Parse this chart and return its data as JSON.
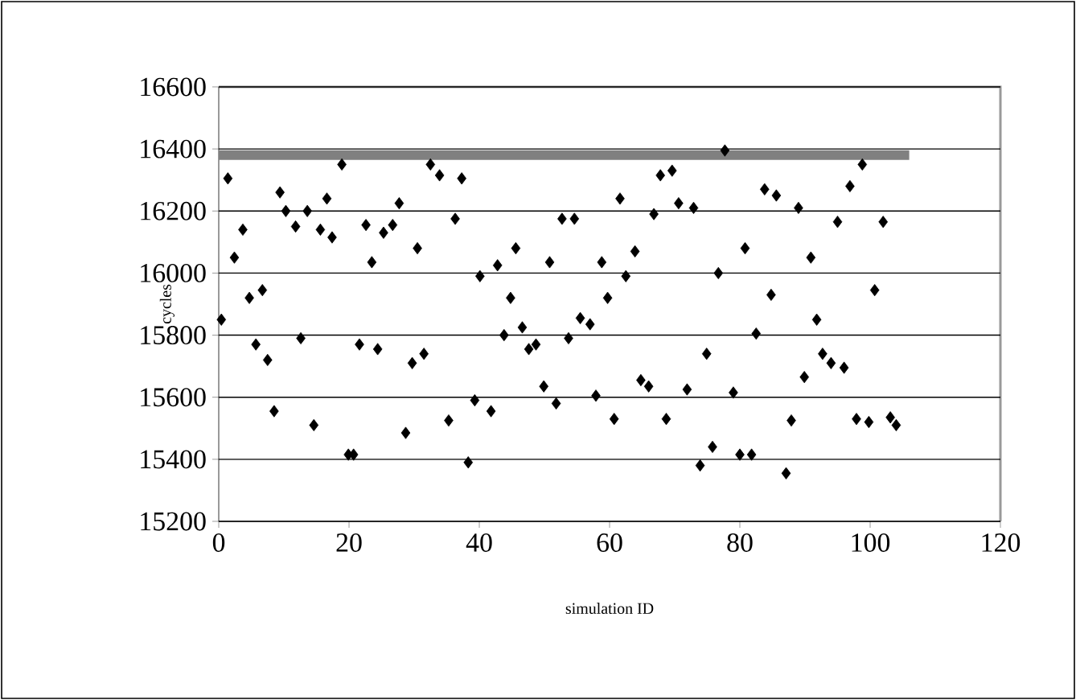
{
  "chart_data": {
    "type": "scatter",
    "xlabel": "simulation ID",
    "ylabel": "cycles",
    "xlim": [
      0,
      120
    ],
    "xticks": [
      0,
      20,
      40,
      60,
      80,
      100,
      120
    ],
    "ylim": [
      15200,
      16600
    ],
    "yticks": [
      15200,
      15400,
      15600,
      15800,
      16000,
      16200,
      16400,
      16600
    ],
    "grid": "y",
    "legend": false,
    "series": [
      {
        "type": "line",
        "color": "#808080",
        "marker": "none",
        "x": [
          0,
          106
        ],
        "values": [
          16380,
          16380
        ]
      },
      {
        "color": "#000000",
        "marker": "diamond",
        "x": [
          0.4,
          1.4,
          2.4,
          3.7,
          4.7,
          5.7,
          6.7,
          7.5,
          8.5,
          9.4,
          10.3,
          11.8,
          12.6,
          13.6,
          14.6,
          15.6,
          16.6,
          17.4,
          18.9,
          19.9,
          20.7,
          21.6,
          22.6,
          23.5,
          24.4,
          25.3,
          26.7,
          27.7,
          28.7,
          29.7,
          30.5,
          31.5,
          32.5,
          33.9,
          35.3,
          36.3,
          37.3,
          38.3,
          39.3,
          40.1,
          41.8,
          42.8,
          43.8,
          44.8,
          45.6,
          46.6,
          47.6,
          48.7,
          49.9,
          50.8,
          51.8,
          52.7,
          53.7,
          54.6,
          55.5,
          57.0,
          57.9,
          58.8,
          59.7,
          60.7,
          61.6,
          62.5,
          63.9,
          64.8,
          66.0,
          66.8,
          67.8,
          68.7,
          69.6,
          70.6,
          71.9,
          72.9,
          73.9,
          74.9,
          75.8,
          76.7,
          77.7,
          79.0,
          80.0,
          80.8,
          81.8,
          82.5,
          83.8,
          84.8,
          85.6,
          87.1,
          87.9,
          89.0,
          89.9,
          90.9,
          91.8,
          92.7,
          94.0,
          95.0,
          96.0,
          96.9,
          97.9,
          98.8,
          99.8,
          100.7,
          102.0,
          103.1,
          104.0
        ],
        "values": [
          15850,
          16305,
          16050,
          16140,
          15920,
          15770,
          15945,
          15720,
          15555,
          16260,
          16200,
          16150,
          15790,
          16200,
          15510,
          16140,
          16240,
          16115,
          16350,
          15415,
          15415,
          15770,
          16155,
          16035,
          15755,
          16130,
          16155,
          16225,
          15485,
          15710,
          16080,
          15740,
          16350,
          16315,
          15525,
          16175,
          16305,
          15390,
          15590,
          15990,
          15555,
          16025,
          15800,
          15920,
          16080,
          15825,
          15755,
          15770,
          15635,
          16035,
          15580,
          16175,
          15790,
          16175,
          15855,
          15835,
          15605,
          16035,
          15920,
          15530,
          16240,
          15990,
          16070,
          15655,
          15635,
          16190,
          16315,
          15530,
          16330,
          16225,
          15625,
          16210,
          15380,
          15740,
          15440,
          16000,
          16395,
          15615,
          15415,
          16080,
          15415,
          15805,
          16270,
          15930,
          16250,
          15355,
          15525,
          16210,
          15665,
          16050,
          15850,
          15740,
          15710,
          16165,
          15695,
          16280,
          15530,
          16350,
          15520,
          15945,
          16165,
          15535,
          15510
        ]
      }
    ]
  }
}
